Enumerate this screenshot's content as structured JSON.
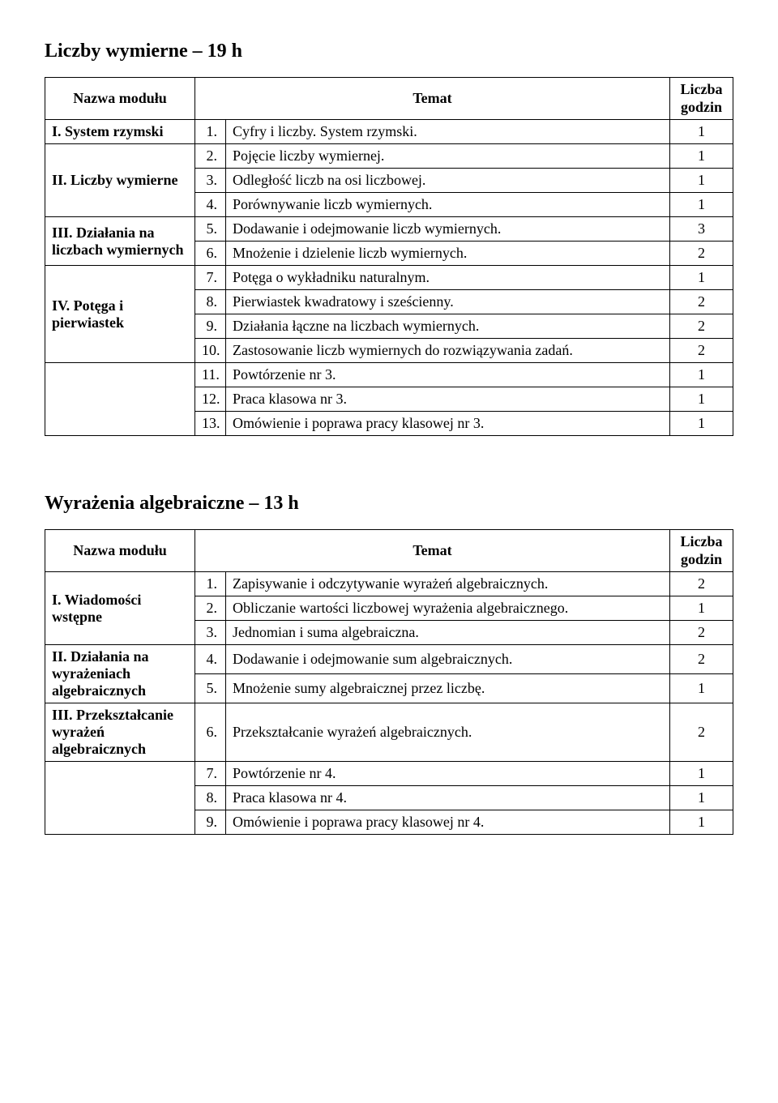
{
  "section1": {
    "title": "Liczby wymierne – 19 h",
    "headers": {
      "module": "Nazwa modułu",
      "topic": "Temat",
      "hours_l1": "Liczba",
      "hours_l2": "godzin"
    },
    "modules": [
      {
        "name": "I. System rzymski",
        "rows": [
          {
            "n": "1.",
            "t": "Cyfry i liczby. System rzymski.",
            "h": "1"
          }
        ]
      },
      {
        "name": "II. Liczby wymierne",
        "rows": [
          {
            "n": "2.",
            "t": "Pojęcie liczby wymiernej.",
            "h": "1"
          },
          {
            "n": "3.",
            "t": "Odległość liczb na osi liczbowej.",
            "h": "1"
          },
          {
            "n": "4.",
            "t": "Porównywanie liczb wymiernych.",
            "h": "1"
          }
        ]
      },
      {
        "name": "III. Działania na liczbach wymiernych",
        "rows": [
          {
            "n": "5.",
            "t": "Dodawanie i odejmowanie liczb wymiernych.",
            "h": "3"
          },
          {
            "n": "6.",
            "t": "Mnożenie i dzielenie liczb wymiernych.",
            "h": "2"
          }
        ]
      },
      {
        "name": "IV. Potęga i pierwiastek",
        "rows": [
          {
            "n": "7.",
            "t": "Potęga o wykładniku naturalnym.",
            "h": "1"
          },
          {
            "n": "8.",
            "t": "Pierwiastek kwadratowy i sześcienny.",
            "h": "2"
          },
          {
            "n": "9.",
            "t": "Działania łączne na liczbach wymiernych.",
            "h": "2"
          },
          {
            "n": "10.",
            "t": "Zastosowanie liczb wymiernych do rozwiązywania zadań.",
            "h": "2"
          }
        ]
      },
      {
        "name": "",
        "rows": [
          {
            "n": "11.",
            "t": "Powtórzenie nr 3.",
            "h": "1"
          },
          {
            "n": "12.",
            "t": "Praca klasowa nr 3.",
            "h": "1"
          },
          {
            "n": "13.",
            "t": "Omówienie i poprawa pracy klasowej nr 3.",
            "h": "1"
          }
        ]
      }
    ]
  },
  "section2": {
    "title": "Wyrażenia algebraiczne – 13 h",
    "headers": {
      "module": "Nazwa modułu",
      "topic": "Temat",
      "hours_l1": "Liczba",
      "hours_l2": "godzin"
    },
    "modules": [
      {
        "name": "I. Wiadomości wstępne",
        "rows": [
          {
            "n": "1.",
            "t": "Zapisywanie i odczytywanie wyrażeń algebraicznych.",
            "h": "2"
          },
          {
            "n": "2.",
            "t": "Obliczanie wartości liczbowej wyrażenia algebraicznego.",
            "h": "1"
          },
          {
            "n": "3.",
            "t": "Jednomian i suma algebraiczna.",
            "h": "2"
          }
        ]
      },
      {
        "name": "II. Działania na wyrażeniach algebraicznych",
        "rows": [
          {
            "n": "4.",
            "t": "Dodawanie i odejmowanie sum algebraicznych.",
            "h": "2"
          },
          {
            "n": "5.",
            "t": "Mnożenie sumy algebraicznej przez liczbę.",
            "h": "1"
          }
        ]
      },
      {
        "name": "III. Przekształcanie wyrażeń algebraicznych",
        "rows": [
          {
            "n": "6.",
            "t": "Przekształcanie wyrażeń algebraicznych.",
            "h": "2"
          }
        ]
      },
      {
        "name": "",
        "rows": [
          {
            "n": "7.",
            "t": "Powtórzenie nr 4.",
            "h": "1"
          },
          {
            "n": "8.",
            "t": "Praca klasowa nr 4.",
            "h": "1"
          },
          {
            "n": "9.",
            "t": "Omówienie i poprawa pracy klasowej nr 4.",
            "h": "1"
          }
        ]
      }
    ]
  }
}
